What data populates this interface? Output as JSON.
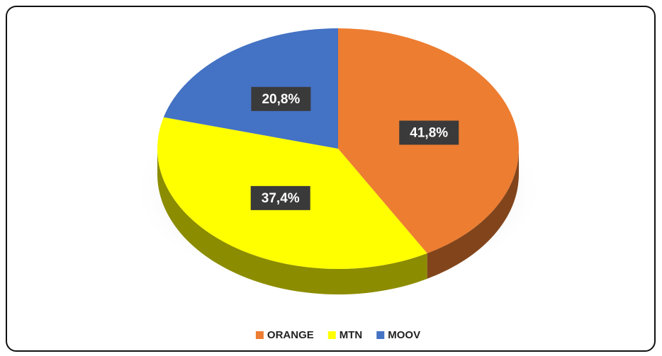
{
  "chart_data": {
    "type": "pie",
    "categories": [
      "ORANGE",
      "MTN",
      "MOOV"
    ],
    "values": [
      41.8,
      37.4,
      20.8
    ],
    "value_labels": [
      "41,8%",
      "37,4%",
      "20,8%"
    ],
    "colors": [
      "#ED7D31",
      "#FFFF00",
      "#4472C4"
    ],
    "legend": "bottom"
  }
}
